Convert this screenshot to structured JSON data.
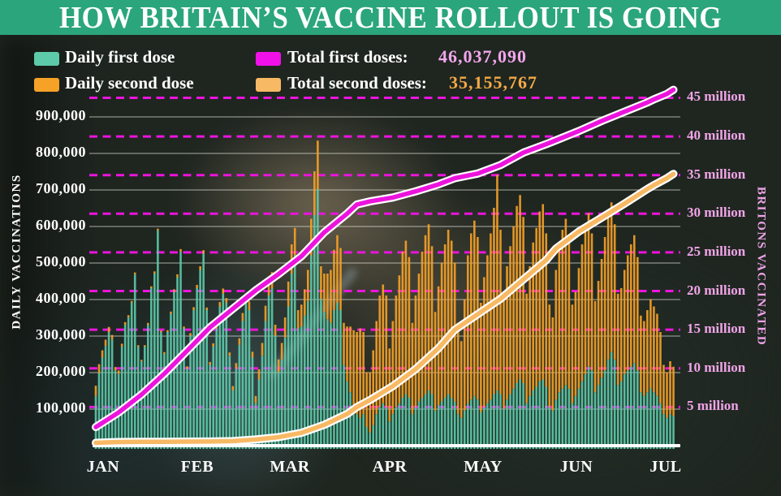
{
  "title": "HOW BRITAIN’S VACCINE ROLLOUT IS GOING",
  "colors": {
    "banner_green": "#2ba57c",
    "daily_first_teal": "#5dcbaa",
    "daily_second_orange": "#f6a227",
    "total_first_magenta": "#ec14dd",
    "total_second_orange": "#f8b964",
    "right_axis_pink": "#f0a4e8",
    "value_pink": "#f2a6ec",
    "value_orange": "#f5a945",
    "gridline_gray": "rgba(235,235,225,0.55)",
    "axis_white": "#ffffff"
  },
  "legend": {
    "daily_first_label": "Daily first dose",
    "daily_second_label": "Daily second dose",
    "total_first_label": "Total first doses:",
    "total_first_value": "46,037,090",
    "total_second_label": "Total second doses:",
    "total_second_value": "35,155,767"
  },
  "axes": {
    "left_title": "DAILY VACCINATIONS",
    "right_title": "BRITONS VACCINATED",
    "left_ticks": [
      "100,000",
      "200,000",
      "300,000",
      "400,000",
      "500,000",
      "600,000",
      "700,000",
      "800,000",
      "900,000"
    ],
    "right_ticks": [
      "5 million",
      "10 million",
      "15 million",
      "20 million",
      "25 million",
      "30 million",
      "35 million",
      "40 million",
      "45 million"
    ],
    "months": [
      "JAN",
      "FEB",
      "MAR",
      "APR",
      "MAY",
      "JUN",
      "JUL"
    ]
  },
  "chart_data": {
    "type": "bar",
    "subtype": "stacked daily bars + cumulative lines",
    "start_date": "2021-01-11",
    "end_date": "2021-07-07",
    "left_axis": {
      "label": "DAILY VACCINATIONS",
      "min": 0,
      "max": 950000,
      "tick_step": 100000,
      "gridlines": "solid gray"
    },
    "right_axis": {
      "label": "BRITONS VACCINATED",
      "min": 0,
      "max": 47500000,
      "tick_step": 5000000,
      "gridlines": "dashed magenta"
    },
    "bar_units": "doses per day (thousands)",
    "series": [
      {
        "name": "Daily first dose",
        "color": "#5dcbaa",
        "stack_order": 1,
        "values_thousands": [
          145,
          208,
          250,
          282,
          320,
          300,
          215,
          205,
          280,
          340,
          360,
          400,
          478,
          280,
          240,
          280,
          340,
          440,
          480,
          598,
          320,
          260,
          320,
          370,
          430,
          470,
          540,
          330,
          220,
          310,
          380,
          440,
          490,
          535,
          380,
          230,
          280,
          330,
          390,
          425,
          400,
          255,
          160,
          220,
          285,
          350,
          400,
          380,
          250,
          125,
          190,
          255,
          350,
          420,
          440,
          310,
          210,
          245,
          305,
          390,
          480,
          530,
          330,
          335,
          365,
          405,
          530,
          640,
          711,
          410,
          375,
          355,
          345,
          380,
          400,
          380,
          230,
          185,
          155,
          120,
          95,
          85,
          95,
          60,
          45,
          65,
          95,
          115,
          125,
          115,
          75,
          95,
          115,
          125,
          140,
          150,
          140,
          95,
          115,
          130,
          140,
          150,
          160,
          150,
          105,
          120,
          130,
          140,
          150,
          140,
          130,
          95,
          85,
          105,
          125,
          135,
          145,
          135,
          100,
          115,
          125,
          135,
          150,
          160,
          150,
          110,
          135,
          150,
          165,
          180,
          190,
          180,
          125,
          145,
          160,
          170,
          185,
          190,
          170,
          115,
          105,
          135,
          155,
          165,
          175,
          165,
          125,
          145,
          165,
          185,
          205,
          225,
          215,
          155,
          175,
          195,
          215,
          245,
          265,
          245,
          175,
          185,
          205,
          215,
          225,
          235,
          215,
          155,
          145,
          155,
          165,
          155,
          145,
          125,
          95,
          85,
          95,
          90
        ]
      },
      {
        "name": "Daily second dose",
        "color": "#f6a227",
        "stack_order": 2,
        "values_thousands": [
          28,
          24,
          20,
          17,
          14,
          12,
          9,
          10,
          8,
          7,
          6,
          5,
          5,
          4,
          4,
          4,
          5,
          5,
          6,
          5,
          4,
          5,
          5,
          6,
          7,
          8,
          7,
          5,
          6,
          7,
          8,
          9,
          10,
          9,
          7,
          8,
          9,
          10,
          12,
          14,
          13,
          9,
          12,
          15,
          18,
          22,
          26,
          24,
          16,
          20,
          28,
          35,
          42,
          48,
          44,
          30,
          35,
          45,
          55,
          68,
          80,
          75,
          50,
          60,
          72,
          85,
          100,
          120,
          133,
          90,
          105,
          125,
          145,
          165,
          185,
          170,
          115,
          150,
          180,
          205,
          225,
          245,
          225,
          150,
          165,
          205,
          255,
          305,
          325,
          305,
          200,
          255,
          305,
          350,
          400,
          420,
          385,
          250,
          305,
          350,
          400,
          435,
          455,
          405,
          270,
          325,
          380,
          420,
          450,
          430,
          380,
          250,
          210,
          305,
          405,
          455,
          480,
          445,
          300,
          355,
          405,
          455,
          510,
          590,
          450,
          320,
          365,
          405,
          445,
          485,
          505,
          455,
          300,
          355,
          405,
          435,
          465,
          480,
          420,
          280,
          255,
          355,
          405,
          435,
          455,
          405,
          270,
          285,
          330,
          375,
          400,
          420,
          375,
          250,
          285,
          325,
          365,
          390,
          410,
          370,
          250,
          255,
          285,
          315,
          335,
          350,
          310,
          210,
          205,
          225,
          245,
          235,
          225,
          195,
          135,
          125,
          145,
          135
        ]
      }
    ],
    "lines": [
      {
        "name": "Total first doses",
        "color": "#ec14dd",
        "axis": "right",
        "final_value": 46037090,
        "anchors_day_millions": [
          [
            0,
            2.4
          ],
          [
            7,
            4.3
          ],
          [
            14,
            6.6
          ],
          [
            21,
            9.3
          ],
          [
            28,
            12.3
          ],
          [
            35,
            15.3
          ],
          [
            42,
            17.7
          ],
          [
            49,
            20.1
          ],
          [
            56,
            22.2
          ],
          [
            63,
            24.5
          ],
          [
            70,
            27.6
          ],
          [
            77,
            30.0
          ],
          [
            80,
            31.2
          ],
          [
            84,
            31.6
          ],
          [
            91,
            32.1
          ],
          [
            98,
            32.9
          ],
          [
            105,
            33.8
          ],
          [
            110,
            34.6
          ],
          [
            117,
            35.2
          ],
          [
            124,
            36.3
          ],
          [
            131,
            37.9
          ],
          [
            138,
            39.0
          ],
          [
            141,
            39.5
          ],
          [
            148,
            40.7
          ],
          [
            155,
            42.0
          ],
          [
            162,
            43.2
          ],
          [
            169,
            44.4
          ],
          [
            171,
            44.8
          ],
          [
            175,
            45.5
          ],
          [
            177,
            46.04
          ]
        ]
      },
      {
        "name": "Total second doses",
        "color": "#f8b964",
        "axis": "right",
        "final_value": 35155767,
        "anchors_day_millions": [
          [
            0,
            0.37
          ],
          [
            7,
            0.47
          ],
          [
            14,
            0.49
          ],
          [
            21,
            0.5
          ],
          [
            28,
            0.52
          ],
          [
            35,
            0.54
          ],
          [
            42,
            0.59
          ],
          [
            49,
            0.8
          ],
          [
            56,
            1.1
          ],
          [
            63,
            1.66
          ],
          [
            70,
            2.7
          ],
          [
            77,
            4.1
          ],
          [
            80,
            5.0
          ],
          [
            84,
            5.9
          ],
          [
            91,
            7.7
          ],
          [
            98,
            9.9
          ],
          [
            105,
            12.6
          ],
          [
            110,
            15.0
          ],
          [
            117,
            17.0
          ],
          [
            124,
            19.0
          ],
          [
            131,
            21.5
          ],
          [
            138,
            24.0
          ],
          [
            141,
            25.5
          ],
          [
            148,
            27.7
          ],
          [
            155,
            29.5
          ],
          [
            162,
            31.3
          ],
          [
            169,
            33.2
          ],
          [
            171,
            33.7
          ],
          [
            175,
            34.6
          ],
          [
            177,
            35.16
          ]
        ]
      }
    ],
    "title": "HOW BRITAIN’S VACCINE ROLLOUT IS GOING",
    "legend_position": "top-left, two columns",
    "x_tick_labels": [
      "JAN",
      "FEB",
      "MAR",
      "APR",
      "MAY",
      "JUN",
      "JUL"
    ]
  }
}
